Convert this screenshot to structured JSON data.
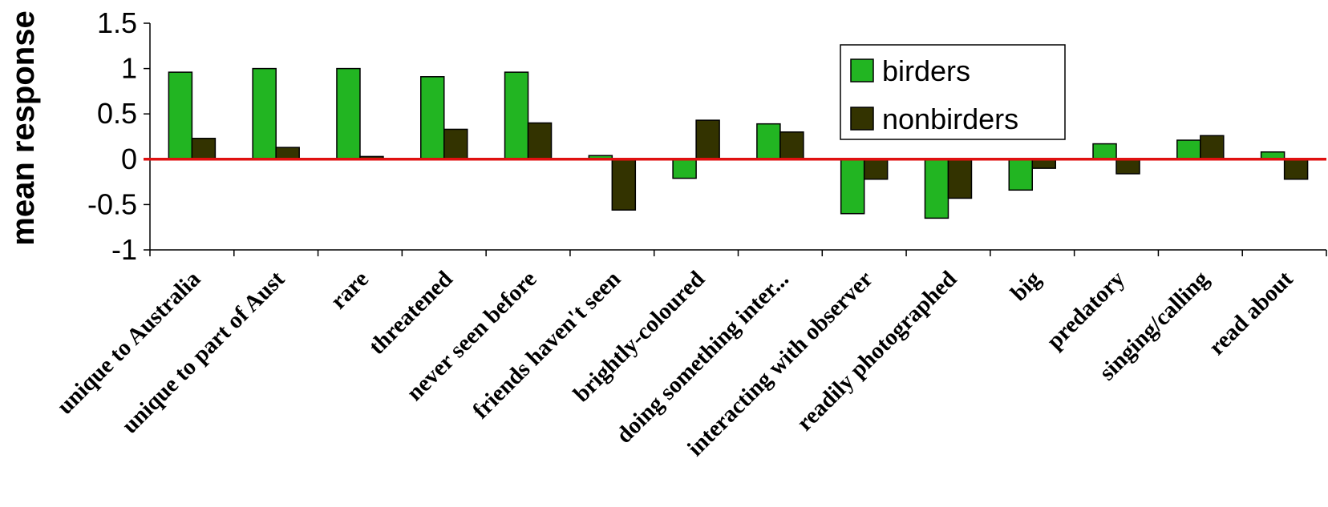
{
  "chart_data": {
    "type": "bar",
    "ylabel": "mean response",
    "xlabel": "",
    "ylim": [
      -1,
      1.5
    ],
    "yticks": [
      1.5,
      1,
      0.5,
      0,
      -0.5,
      -1
    ],
    "ytick_labels": [
      "1.5",
      "1",
      "0.5",
      "0",
      "-0.5",
      "-1"
    ],
    "reference_line": {
      "y": 0,
      "color": "#e01010"
    },
    "categories": [
      "unique to Australia",
      "unique to part of Aust",
      "rare",
      "threatened",
      "never seen before",
      "friends haven't seen",
      "brightly-coloured",
      "doing something inter...",
      "interacting with observer",
      "readily photographed",
      "big",
      "predatory",
      "singing/calling",
      "read about"
    ],
    "series": [
      {
        "name": "birders",
        "color": "#22b522",
        "values": [
          0.96,
          1.0,
          1.0,
          0.91,
          0.96,
          0.04,
          -0.21,
          0.39,
          -0.6,
          -0.65,
          -0.34,
          0.17,
          0.21,
          0.08
        ]
      },
      {
        "name": "nonbirders",
        "color": "#333300",
        "values": [
          0.23,
          0.13,
          0.03,
          0.33,
          0.4,
          -0.56,
          0.43,
          0.3,
          -0.22,
          -0.43,
          -0.1,
          -0.16,
          0.26,
          -0.22
        ]
      }
    ],
    "legend_position": "top-right",
    "grid": false
  }
}
